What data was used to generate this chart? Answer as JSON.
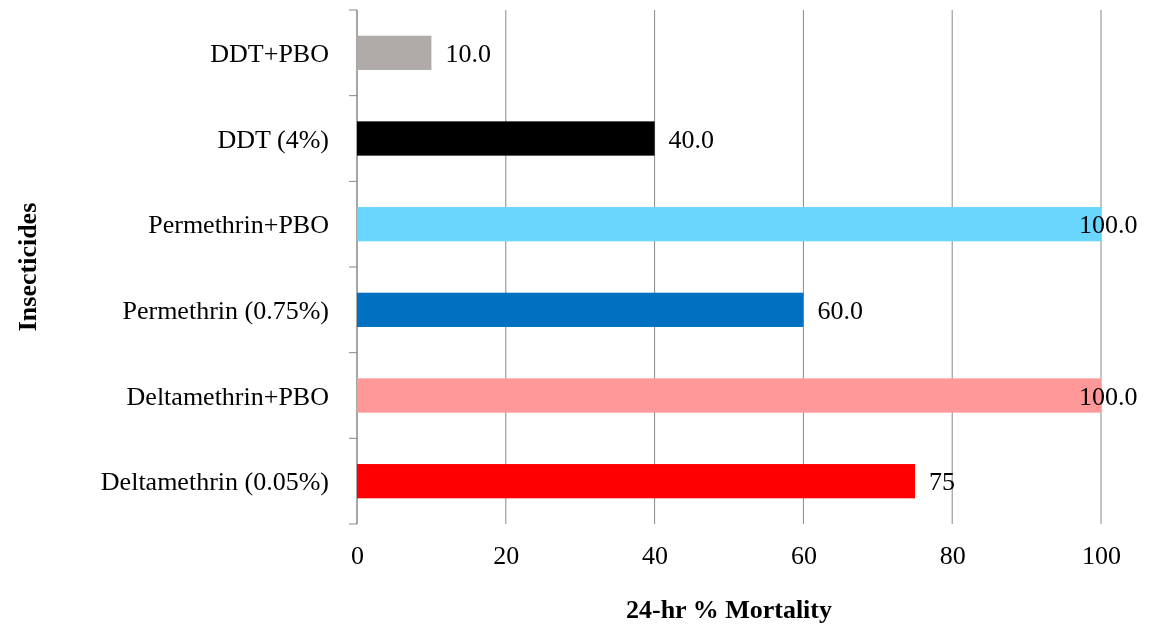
{
  "chart_data": {
    "type": "bar",
    "orientation": "horizontal",
    "xlabel": "24-hr % Mortality",
    "ylabel": "Insecticides",
    "categories": [
      "DDT+PBO",
      "DDT (4%)",
      "Permethrin+PBO",
      "Permethrin (0.75%)",
      "Deltamethrin+PBO",
      "Deltamethrin (0.05%)"
    ],
    "values": [
      10,
      40,
      100,
      60,
      100,
      75
    ],
    "colors": [
      "#b0aaa8",
      "#000000",
      "#69d7fd",
      "#0070c0",
      "#ff9999",
      "#ff0000"
    ],
    "value_labels": [
      "10.0",
      "40.0",
      "100.0",
      "60.0",
      "100.0",
      "75"
    ],
    "xlim": [
      0,
      100
    ],
    "xticks": [
      0,
      20,
      40,
      60,
      80,
      100
    ],
    "grid": "x"
  }
}
